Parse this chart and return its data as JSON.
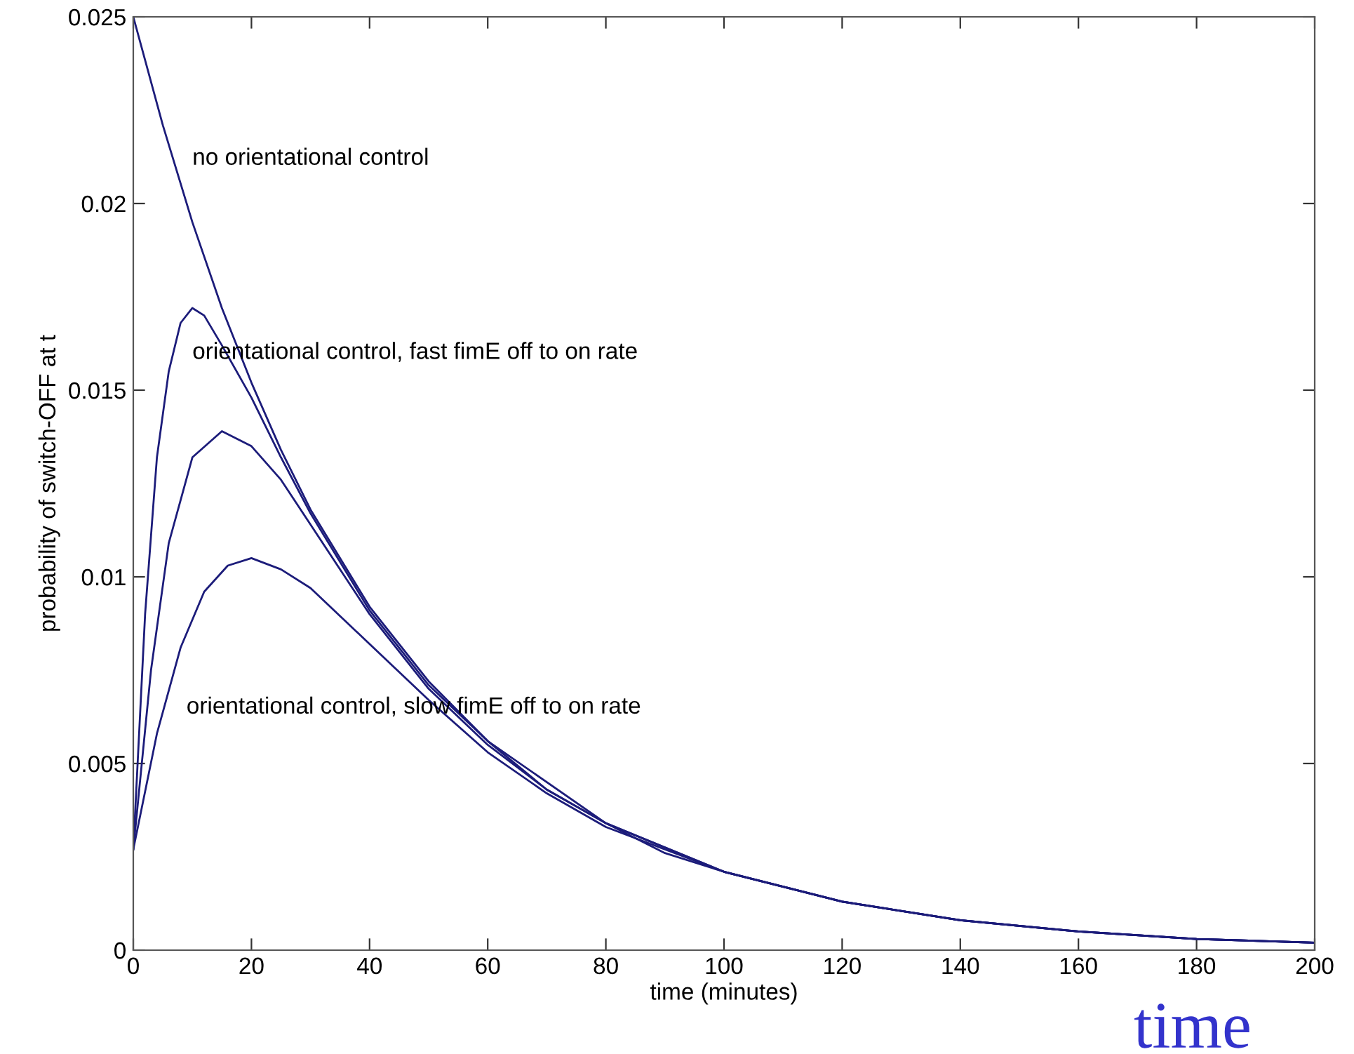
{
  "chart_data": {
    "type": "line",
    "xlabel": "time (minutes)",
    "ylabel": "probability of switch-OFF at t",
    "xlim": [
      0,
      200
    ],
    "ylim": [
      0,
      0.025
    ],
    "xticks": [
      0,
      20,
      40,
      60,
      80,
      100,
      120,
      140,
      160,
      180,
      200
    ],
    "yticks": [
      0,
      0.005,
      0.01,
      0.015,
      0.02,
      0.025
    ],
    "grid": false,
    "legend": false,
    "marker": "none",
    "line_style": "solid",
    "series": [
      {
        "color": "#1c1c7a",
        "x": [
          0,
          5,
          10,
          15,
          20,
          25,
          30,
          40,
          50,
          60,
          70,
          80,
          90,
          100,
          120,
          140,
          160,
          180,
          200
        ],
        "values": [
          0.025,
          0.0221,
          0.0195,
          0.0172,
          0.0152,
          0.0134,
          0.0118,
          0.0092,
          0.0072,
          0.0056,
          0.0043,
          0.0034,
          0.0026,
          0.0021,
          0.0013,
          0.0008,
          0.0005,
          0.0003,
          0.0002
        ]
      },
      {
        "color": "#1c1c7a",
        "x": [
          0,
          2,
          4,
          6,
          8,
          10,
          12,
          15,
          20,
          25,
          30,
          40,
          50,
          60,
          80,
          100,
          120,
          140,
          160,
          180,
          200
        ],
        "values": [
          0.0027,
          0.009,
          0.0132,
          0.0155,
          0.0168,
          0.0172,
          0.017,
          0.0162,
          0.0148,
          0.0132,
          0.0117,
          0.0091,
          0.0071,
          0.0056,
          0.0034,
          0.0021,
          0.0013,
          0.0008,
          0.0005,
          0.0003,
          0.0002
        ]
      },
      {
        "color": "#1c1c7a",
        "x": [
          0,
          3,
          6,
          10,
          15,
          20,
          25,
          30,
          40,
          50,
          60,
          70,
          80,
          100,
          120,
          140,
          160,
          180,
          200
        ],
        "values": [
          0.0027,
          0.0075,
          0.0109,
          0.0132,
          0.0139,
          0.0135,
          0.0126,
          0.0114,
          0.009,
          0.007,
          0.0055,
          0.0043,
          0.0034,
          0.0021,
          0.0013,
          0.0008,
          0.0005,
          0.0003,
          0.0002
        ]
      },
      {
        "color": "#1c1c7a",
        "x": [
          0,
          4,
          8,
          12,
          16,
          20,
          25,
          30,
          40,
          50,
          60,
          70,
          80,
          100,
          120,
          140,
          160,
          180,
          200
        ],
        "values": [
          0.0027,
          0.0058,
          0.0081,
          0.0096,
          0.0103,
          0.0105,
          0.0102,
          0.0097,
          0.0082,
          0.0067,
          0.0053,
          0.0042,
          0.0033,
          0.0021,
          0.0013,
          0.0008,
          0.0005,
          0.0003,
          0.0002
        ]
      }
    ],
    "annotations": [
      "no orientational control",
      "orientational control, fast fimE off to on rate",
      "orientational control, slow fimE off to on rate",
      "time"
    ]
  }
}
